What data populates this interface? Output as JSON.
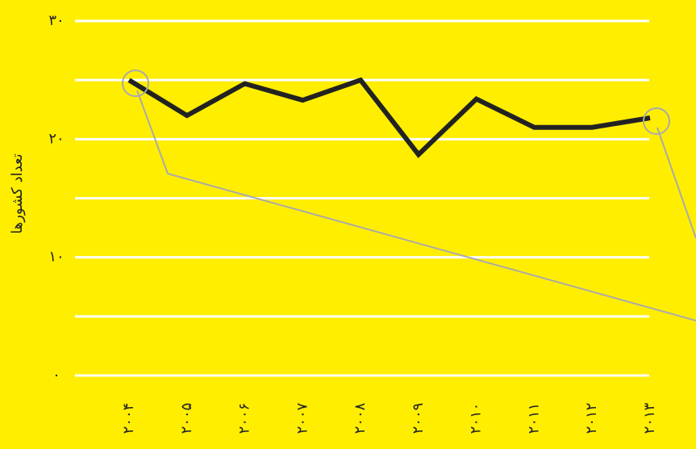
{
  "chart_data": {
    "type": "line",
    "y_label": "تعداد کشورها",
    "categories": [
      "۲۰۰۴",
      "۲۰۰۵",
      "۲۰۰۶",
      "۲۰۰۷",
      "۲۰۰۸",
      "۲۰۰۹",
      "۲۰۱۰",
      "۲۰۱۱",
      "۲۰۱۲",
      "۲۰۱۳"
    ],
    "series": [
      {
        "color": "#222222",
        "values": [
          25,
          22,
          24.7,
          23.3,
          25,
          18.7,
          23.4,
          21,
          21,
          21.8
        ]
      }
    ],
    "ylim": [
      0,
      30
    ],
    "yticks": [
      {
        "value": 0,
        "label": "۰"
      },
      {
        "value": 10,
        "label": "۱۰"
      },
      {
        "value": 20,
        "label": "۲۰"
      },
      {
        "value": 30,
        "label": "۳۰"
      }
    ],
    "minor_yticks": [
      5,
      15,
      25
    ],
    "grid": true,
    "background": "#ffee00"
  }
}
